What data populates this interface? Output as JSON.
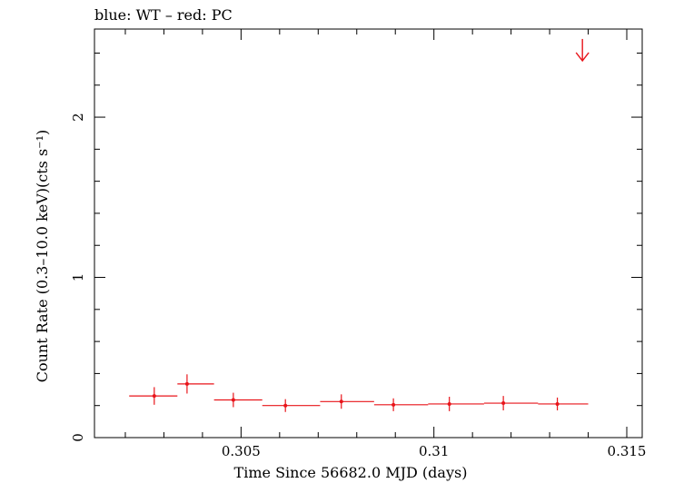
{
  "chart_data": {
    "type": "scatter",
    "title": "blue: WT – red: PC",
    "xlabel": "Time Since 56682.0 MJD (days)",
    "ylabel": "Count Rate (0.3–10.0 keV)(cts s⁻¹)",
    "xlim": [
      0.3012,
      0.3154
    ],
    "ylim": [
      0,
      2.55
    ],
    "x_ticks": [
      {
        "value": 0.305,
        "label": "0.305"
      },
      {
        "value": 0.31,
        "label": "0.31"
      },
      {
        "value": 0.315,
        "label": "0.315"
      }
    ],
    "y_ticks": [
      {
        "value": 0,
        "label": "0"
      },
      {
        "value": 1,
        "label": "1"
      },
      {
        "value": 2,
        "label": "2"
      }
    ],
    "grid": false,
    "series": [
      {
        "color": "#e8141a",
        "points": [
          {
            "x": 0.30275,
            "xerr_lo": 0.3021,
            "xerr_hi": 0.30335,
            "y": 0.26,
            "yerr": 0.055
          },
          {
            "x": 0.3036,
            "xerr_lo": 0.30335,
            "xerr_hi": 0.3043,
            "y": 0.335,
            "yerr": 0.06
          },
          {
            "x": 0.3048,
            "xerr_lo": 0.3043,
            "xerr_hi": 0.30555,
            "y": 0.235,
            "yerr": 0.045
          },
          {
            "x": 0.30615,
            "xerr_lo": 0.30555,
            "xerr_hi": 0.30705,
            "y": 0.2,
            "yerr": 0.04
          },
          {
            "x": 0.3076,
            "xerr_lo": 0.30705,
            "xerr_hi": 0.30845,
            "y": 0.225,
            "yerr": 0.045
          },
          {
            "x": 0.30895,
            "xerr_lo": 0.30845,
            "xerr_hi": 0.30985,
            "y": 0.205,
            "yerr": 0.04
          },
          {
            "x": 0.3104,
            "xerr_lo": 0.30985,
            "xerr_hi": 0.3113,
            "y": 0.21,
            "yerr": 0.045
          },
          {
            "x": 0.3118,
            "xerr_lo": 0.3113,
            "xerr_hi": 0.3127,
            "y": 0.215,
            "yerr": 0.045
          },
          {
            "x": 0.3132,
            "xerr_lo": 0.3127,
            "xerr_hi": 0.314,
            "y": 0.21,
            "yerr": 0.04
          }
        ],
        "upper_limits": [
          {
            "x": 0.31385,
            "y": 2.42
          }
        ]
      }
    ]
  }
}
